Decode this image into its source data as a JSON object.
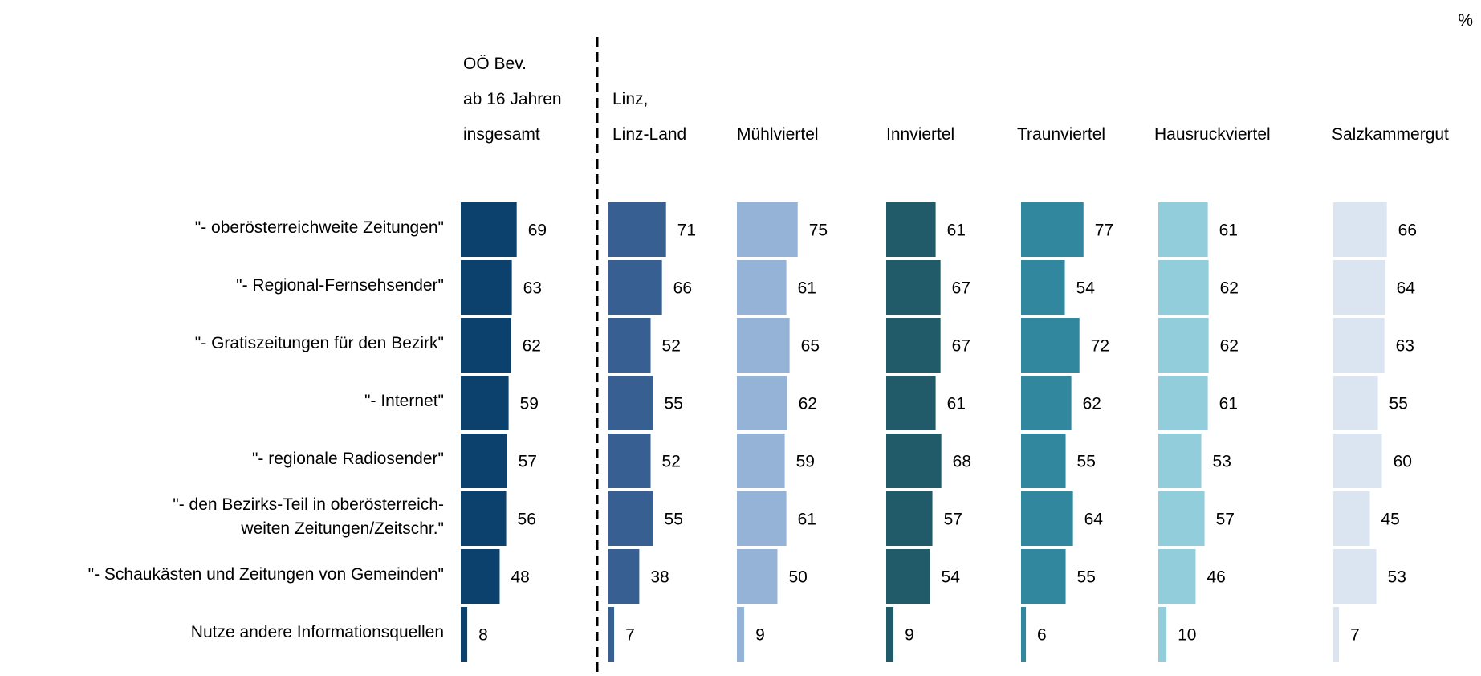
{
  "chart_data": {
    "type": "bar",
    "unit": "%",
    "categories": [
      "\"- oberösterreichweite Zeitungen\"",
      "\"- Regional-Fernsehsender\"",
      "\"- Gratiszeitungen für den Bezirk\"",
      "\"- Internet\"",
      "\"- regionale Radiosender\"",
      "\"- den Bezirks-Teil in oberösterreich-\nweiten Zeitungen/Zeitschr.\"",
      "\"- Schaukästen und Zeitungen von Gemeinden\"",
      "Nutze andere Informationsquellen"
    ],
    "series": [
      {
        "name": "OÖ Bev.\nab 16 Jahren\ninsgesamt",
        "color": "#0b416c",
        "values": [
          69,
          63,
          62,
          59,
          57,
          56,
          48,
          8
        ]
      },
      {
        "name": "Linz,\nLinz-Land",
        "color": "#375f91",
        "values": [
          71,
          66,
          52,
          55,
          52,
          55,
          38,
          7
        ]
      },
      {
        "name": "Mühlviertel",
        "color": "#95b3d7",
        "values": [
          75,
          61,
          65,
          62,
          59,
          61,
          50,
          9
        ]
      },
      {
        "name": "Innviertel",
        "color": "#215b69",
        "values": [
          61,
          67,
          67,
          61,
          68,
          57,
          54,
          9
        ]
      },
      {
        "name": "Traunviertel",
        "color": "#31879d",
        "values": [
          77,
          54,
          72,
          62,
          55,
          64,
          55,
          6
        ]
      },
      {
        "name": "Hausruckviertel",
        "color": "#92cddc",
        "values": [
          61,
          62,
          62,
          61,
          53,
          57,
          46,
          10
        ]
      },
      {
        "name": "Salzkammergut",
        "color": "#dbe5f1",
        "values": [
          66,
          64,
          63,
          55,
          60,
          45,
          53,
          7
        ]
      }
    ]
  }
}
